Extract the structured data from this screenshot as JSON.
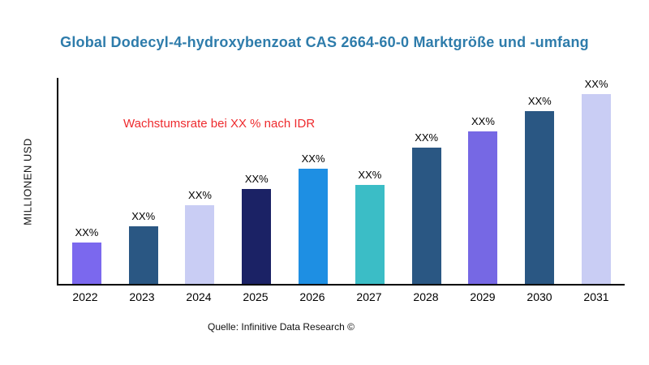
{
  "page": {
    "title": "Global Dodecyl-4-hydroxybenzoat CAS 2664-60-0 Marktgröße und -umfang",
    "ylabel": "MILLIONEN USD",
    "annotation": "Wachstumsrate bei XX % nach IDR",
    "source": "Quelle: Infinitive Data Research ©"
  },
  "colors": {
    "title": "#2e7cab",
    "annotation": "#ee2b2e",
    "axis": "#000000"
  },
  "chart_data": {
    "type": "bar",
    "title": "Global Dodecyl-4-hydroxybenzoat CAS 2664-60-0 Marktgröße und -umfang",
    "xlabel": "",
    "ylabel": "MILLIONEN USD",
    "categories": [
      "2022",
      "2023",
      "2024",
      "2025",
      "2026",
      "2027",
      "2028",
      "2029",
      "2030",
      "2031"
    ],
    "values": [
      50,
      70,
      95,
      115,
      140,
      120,
      165,
      185,
      210,
      230
    ],
    "bar_labels": [
      "XX%",
      "XX%",
      "XX%",
      "XX%",
      "XX%",
      "XX%",
      "XX%",
      "XX%",
      "XX%",
      "XX%"
    ],
    "bar_colors": [
      "#7b68ee",
      "#2a5783",
      "#c9cdf4",
      "#1b2265",
      "#1e8fe3",
      "#3bbdc6",
      "#2a5783",
      "#7668e4",
      "#2a5783",
      "#c9cdf4"
    ],
    "ylim": [
      0,
      250
    ],
    "grid": false,
    "legend": "none"
  }
}
